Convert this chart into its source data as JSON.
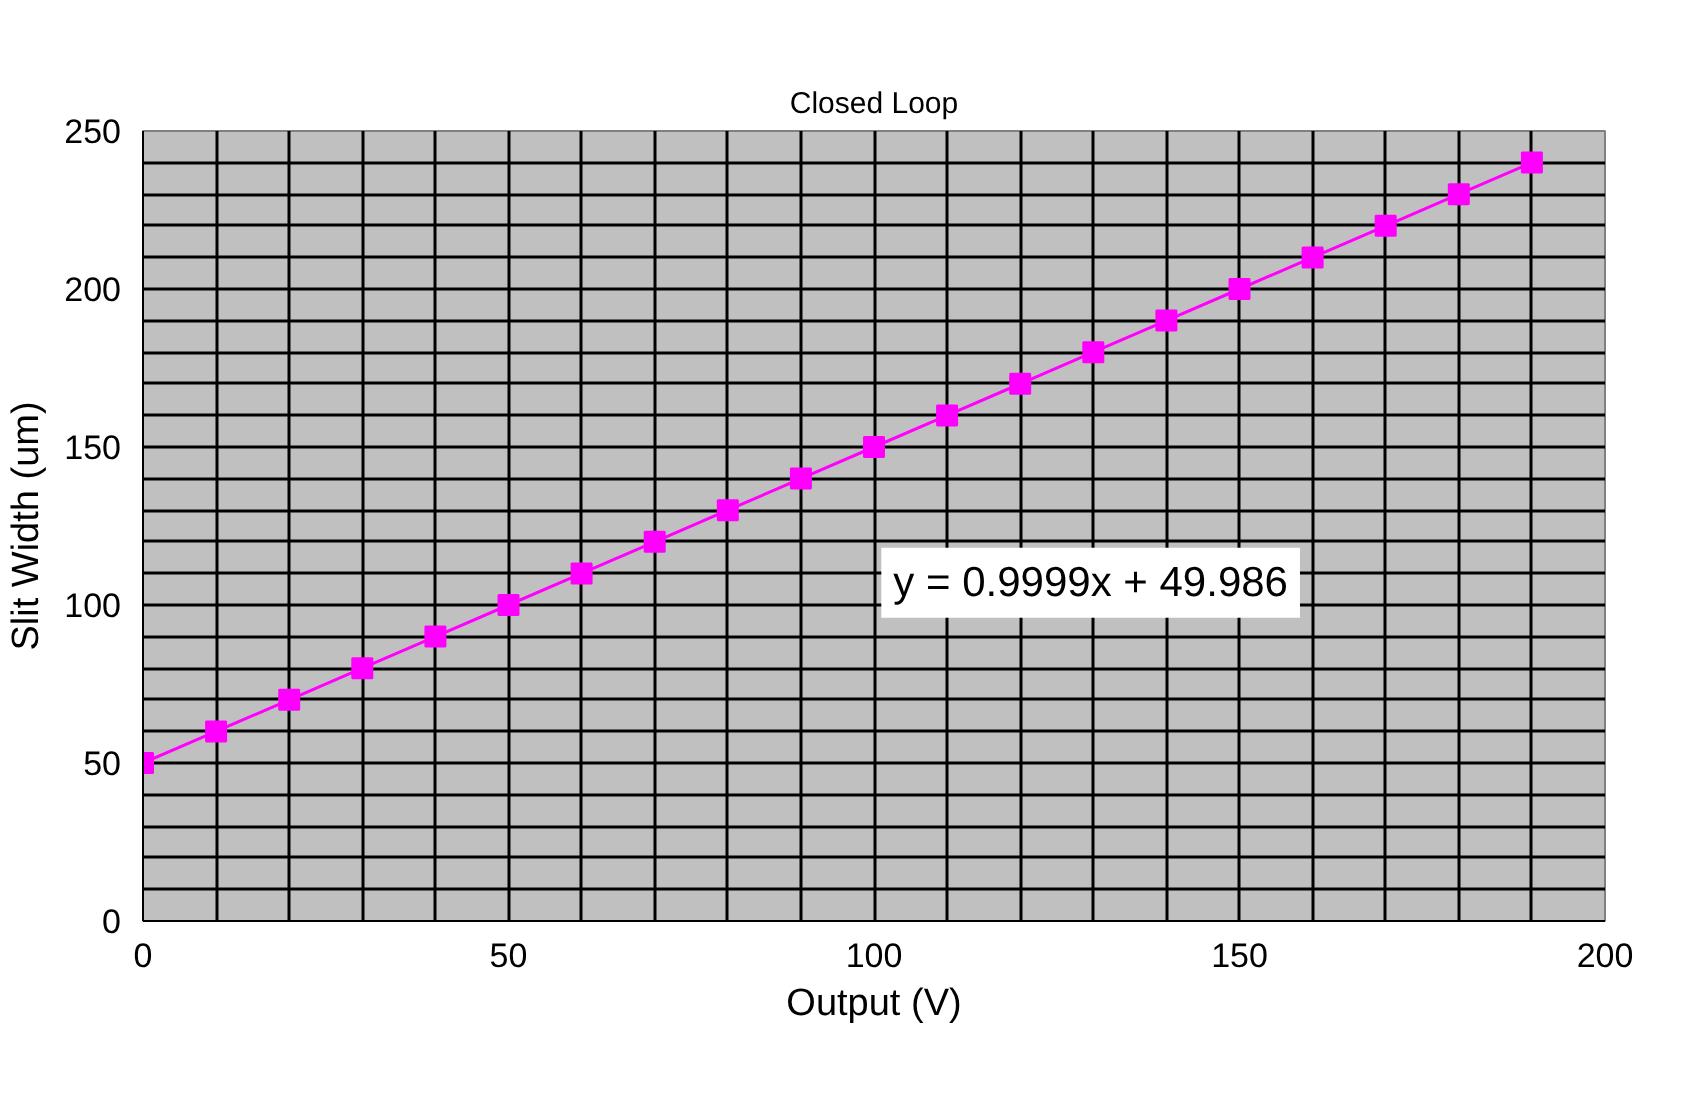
{
  "chart_data": {
    "type": "line",
    "title": "Closed Loop",
    "xlabel": "Output (V)",
    "ylabel": "Slit Width (um)",
    "x": [
      0,
      10,
      20,
      30,
      40,
      50,
      60,
      70,
      80,
      90,
      100,
      110,
      120,
      130,
      140,
      150,
      160,
      170,
      180,
      190
    ],
    "series": [
      {
        "color": "#ff00ff",
        "values": [
          50,
          60,
          70,
          80,
          90,
          100,
          110,
          120,
          130,
          140,
          150,
          160,
          170,
          180,
          190,
          200,
          210,
          220,
          230,
          240
        ]
      }
    ],
    "marker": "square",
    "line_style": "solid",
    "grid": true,
    "xlim": [
      0,
      200
    ],
    "ylim": [
      0,
      250
    ],
    "xticks": [
      0,
      {
        "value": 10,
        "label": null
      },
      {
        "value": 20,
        "label": null
      },
      {
        "value": 30,
        "label": null
      },
      {
        "value": 40,
        "label": null
      },
      50,
      {
        "value": 60,
        "label": null
      },
      {
        "value": 70,
        "label": null
      },
      {
        "value": 80,
        "label": null
      },
      {
        "value": 90,
        "label": null
      },
      100,
      {
        "value": 110,
        "label": null
      },
      {
        "value": 120,
        "label": null
      },
      {
        "value": 130,
        "label": null
      },
      {
        "value": 140,
        "label": null
      },
      150,
      {
        "value": 160,
        "label": null
      },
      {
        "value": 170,
        "label": null
      },
      {
        "value": 180,
        "label": null
      },
      {
        "value": 190,
        "label": null
      },
      200
    ],
    "yticks": [
      0,
      {
        "value": 10,
        "label": null
      },
      {
        "value": 20,
        "label": null
      },
      {
        "value": 30,
        "label": null
      },
      {
        "value": 40,
        "label": null
      },
      50,
      {
        "value": 60,
        "label": null
      },
      {
        "value": 70,
        "label": null
      },
      {
        "value": 80,
        "label": null
      },
      {
        "value": 90,
        "label": null
      },
      100,
      {
        "value": 110,
        "label": null
      },
      {
        "value": 120,
        "label": null
      },
      {
        "value": 130,
        "label": null
      },
      {
        "value": 140,
        "label": null
      },
      150,
      {
        "value": 160,
        "label": null
      },
      {
        "value": 170,
        "label": null
      },
      {
        "value": 180,
        "label": null
      },
      {
        "value": 190,
        "label": null
      },
      200,
      {
        "value": 210,
        "label": null
      },
      {
        "value": 220,
        "label": null
      },
      {
        "value": 230,
        "label": null
      },
      {
        "value": 240,
        "label": null
      },
      250
    ],
    "annotations": [
      "y = 0.9999x + 49.986"
    ]
  }
}
